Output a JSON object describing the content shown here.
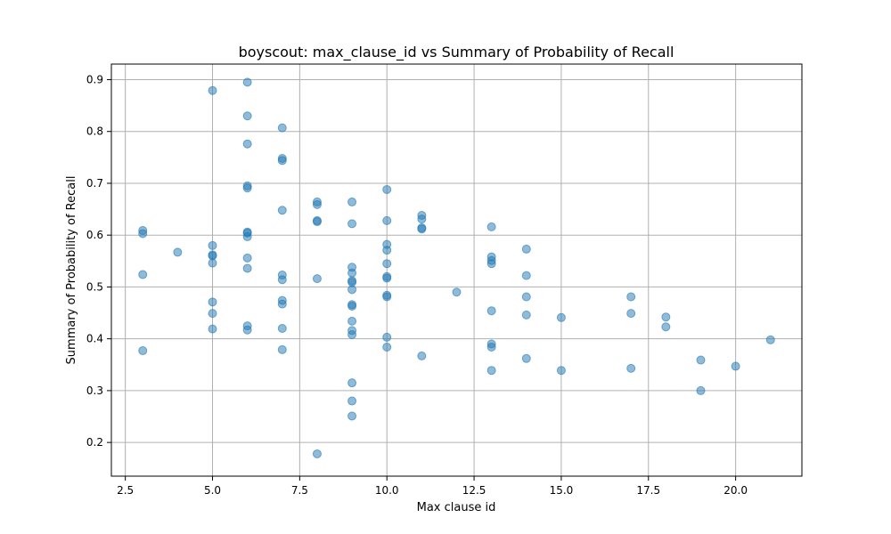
{
  "chart_data": {
    "type": "scatter",
    "title": "boyscout: max_clause_id vs Summary of Probability of Recall",
    "xlabel": "Max clause id",
    "ylabel": "Summary of Probability of Recall",
    "xlim": [
      2.1,
      21.9
    ],
    "ylim": [
      0.135,
      0.93
    ],
    "grid": true,
    "color": "#1f77b4",
    "xticks": [
      2.5,
      5.0,
      7.5,
      10.0,
      12.5,
      15.0,
      17.5,
      20.0
    ],
    "xtick_labels": [
      "2.5",
      "5.0",
      "7.5",
      "10.0",
      "12.5",
      "15.0",
      "17.5",
      "20.0"
    ],
    "yticks": [
      0.2,
      0.3,
      0.4,
      0.5,
      0.6,
      0.7,
      0.8,
      0.9
    ],
    "ytick_labels": [
      "0.2",
      "0.3",
      "0.4",
      "0.5",
      "0.6",
      "0.7",
      "0.8",
      "0.9"
    ],
    "points": [
      {
        "x": 3,
        "y": 0.609
      },
      {
        "x": 3,
        "y": 0.603
      },
      {
        "x": 3,
        "y": 0.524
      },
      {
        "x": 3,
        "y": 0.377
      },
      {
        "x": 4,
        "y": 0.567
      },
      {
        "x": 5,
        "y": 0.879
      },
      {
        "x": 5,
        "y": 0.58
      },
      {
        "x": 5,
        "y": 0.562
      },
      {
        "x": 5,
        "y": 0.56
      },
      {
        "x": 5,
        "y": 0.546
      },
      {
        "x": 5,
        "y": 0.471
      },
      {
        "x": 5,
        "y": 0.449
      },
      {
        "x": 5,
        "y": 0.419
      },
      {
        "x": 6,
        "y": 0.895
      },
      {
        "x": 6,
        "y": 0.83
      },
      {
        "x": 6,
        "y": 0.776
      },
      {
        "x": 6,
        "y": 0.695
      },
      {
        "x": 6,
        "y": 0.691
      },
      {
        "x": 6,
        "y": 0.606
      },
      {
        "x": 6,
        "y": 0.604
      },
      {
        "x": 6,
        "y": 0.597
      },
      {
        "x": 6,
        "y": 0.556
      },
      {
        "x": 6,
        "y": 0.536
      },
      {
        "x": 6,
        "y": 0.425
      },
      {
        "x": 6,
        "y": 0.417
      },
      {
        "x": 7,
        "y": 0.807
      },
      {
        "x": 7,
        "y": 0.748
      },
      {
        "x": 7,
        "y": 0.744
      },
      {
        "x": 7,
        "y": 0.648
      },
      {
        "x": 7,
        "y": 0.523
      },
      {
        "x": 7,
        "y": 0.514
      },
      {
        "x": 7,
        "y": 0.474
      },
      {
        "x": 7,
        "y": 0.467
      },
      {
        "x": 7,
        "y": 0.42
      },
      {
        "x": 7,
        "y": 0.379
      },
      {
        "x": 8,
        "y": 0.664
      },
      {
        "x": 8,
        "y": 0.659
      },
      {
        "x": 8,
        "y": 0.628
      },
      {
        "x": 8,
        "y": 0.626
      },
      {
        "x": 8,
        "y": 0.516
      },
      {
        "x": 8,
        "y": 0.178
      },
      {
        "x": 9,
        "y": 0.664
      },
      {
        "x": 9,
        "y": 0.622
      },
      {
        "x": 9,
        "y": 0.538
      },
      {
        "x": 9,
        "y": 0.527
      },
      {
        "x": 9,
        "y": 0.512
      },
      {
        "x": 9,
        "y": 0.509
      },
      {
        "x": 9,
        "y": 0.495
      },
      {
        "x": 9,
        "y": 0.466
      },
      {
        "x": 9,
        "y": 0.463
      },
      {
        "x": 9,
        "y": 0.434
      },
      {
        "x": 9,
        "y": 0.416
      },
      {
        "x": 9,
        "y": 0.408
      },
      {
        "x": 9,
        "y": 0.315
      },
      {
        "x": 9,
        "y": 0.28
      },
      {
        "x": 9,
        "y": 0.251
      },
      {
        "x": 10,
        "y": 0.688
      },
      {
        "x": 10,
        "y": 0.628
      },
      {
        "x": 10,
        "y": 0.582
      },
      {
        "x": 10,
        "y": 0.571
      },
      {
        "x": 10,
        "y": 0.545
      },
      {
        "x": 10,
        "y": 0.52
      },
      {
        "x": 10,
        "y": 0.517
      },
      {
        "x": 10,
        "y": 0.484
      },
      {
        "x": 10,
        "y": 0.481
      },
      {
        "x": 10,
        "y": 0.403
      },
      {
        "x": 10,
        "y": 0.384
      },
      {
        "x": 11,
        "y": 0.638
      },
      {
        "x": 11,
        "y": 0.631
      },
      {
        "x": 11,
        "y": 0.614
      },
      {
        "x": 11,
        "y": 0.612
      },
      {
        "x": 11,
        "y": 0.367
      },
      {
        "x": 12,
        "y": 0.49
      },
      {
        "x": 13,
        "y": 0.616
      },
      {
        "x": 13,
        "y": 0.558
      },
      {
        "x": 13,
        "y": 0.551
      },
      {
        "x": 13,
        "y": 0.545
      },
      {
        "x": 13,
        "y": 0.454
      },
      {
        "x": 13,
        "y": 0.39
      },
      {
        "x": 13,
        "y": 0.384
      },
      {
        "x": 13,
        "y": 0.339
      },
      {
        "x": 14,
        "y": 0.573
      },
      {
        "x": 14,
        "y": 0.522
      },
      {
        "x": 14,
        "y": 0.481
      },
      {
        "x": 14,
        "y": 0.446
      },
      {
        "x": 14,
        "y": 0.362
      },
      {
        "x": 15,
        "y": 0.441
      },
      {
        "x": 15,
        "y": 0.339
      },
      {
        "x": 17,
        "y": 0.481
      },
      {
        "x": 17,
        "y": 0.449
      },
      {
        "x": 17,
        "y": 0.343
      },
      {
        "x": 18,
        "y": 0.442
      },
      {
        "x": 18,
        "y": 0.423
      },
      {
        "x": 19,
        "y": 0.359
      },
      {
        "x": 19,
        "y": 0.3
      },
      {
        "x": 20,
        "y": 0.347
      },
      {
        "x": 21,
        "y": 0.398
      }
    ]
  }
}
